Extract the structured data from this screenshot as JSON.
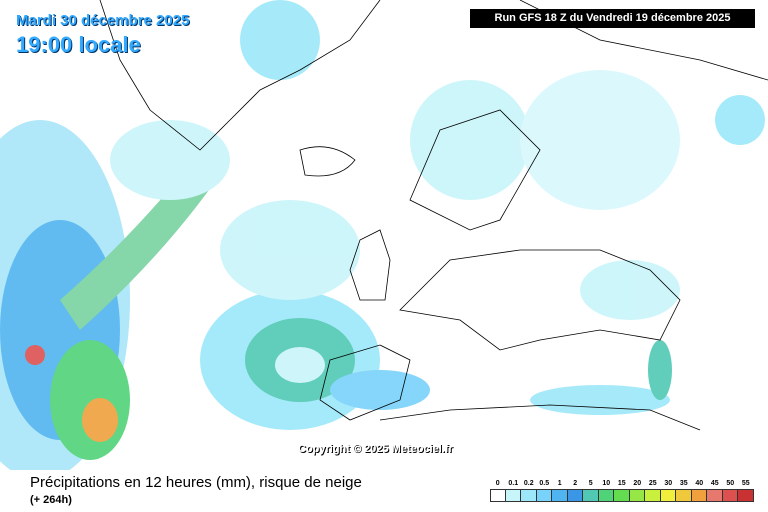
{
  "header": {
    "date": "Mardi 30 décembre 2025",
    "time": "19:00 locale",
    "run": "Run GFS 18 Z du Vendredi 19 décembre 2025"
  },
  "copyright": "Copyright © 2025 Meteociel.fr",
  "footer": {
    "title": "Précipitations en 12 heures (mm), risque de neige",
    "lead": "(+ 264h)"
  },
  "legend": {
    "labels": [
      "0",
      "0.1",
      "0.2",
      "0.5",
      "1",
      "2",
      "5",
      "10",
      "15",
      "20",
      "25",
      "30",
      "35",
      "40",
      "45",
      "50",
      "55"
    ],
    "colors": [
      "#ffffff",
      "#c8f5fa",
      "#9ce8fa",
      "#78d2fa",
      "#50b4f0",
      "#3c96e6",
      "#50c8b4",
      "#50d278",
      "#64dc50",
      "#96e646",
      "#c8f03c",
      "#f0f03c",
      "#f0c83c",
      "#f0a03c",
      "#e6786e",
      "#dc5050",
      "#c83232"
    ]
  }
}
